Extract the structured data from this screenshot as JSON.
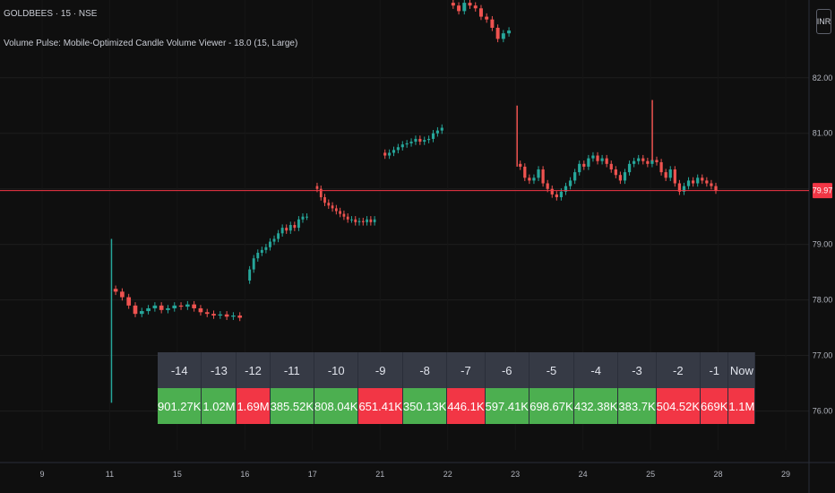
{
  "header": {
    "symbol": "GOLDBEES · 15 · NSE",
    "indicator": "Volume Pulse: Mobile-Optimized Candle Volume Viewer - 18.0 (15, Large)"
  },
  "currency_button": {
    "label": "INR"
  },
  "last_price": {
    "label": "79.97",
    "value": 79.97,
    "color": "#f23645"
  },
  "colors": {
    "up": "#26a69a",
    "down": "#ef5350",
    "grid": "#1f1f1f",
    "axis_text": "#b2b5be"
  },
  "chart_data": {
    "type": "candlestick",
    "title": "GOLDBEES · 15 · NSE",
    "y_ticks": [
      76.0,
      77.0,
      78.0,
      79.0,
      80.0,
      81.0,
      82.0
    ],
    "y_tick_labels": [
      "76.00",
      "77.00",
      "78.00",
      "79.00",
      "",
      "81.00",
      "82.00"
    ],
    "ylim": [
      75.3,
      83.4
    ],
    "x_ticks": [
      "9",
      "11",
      "15",
      "16",
      "17",
      "21",
      "22",
      "23",
      "24",
      "25",
      "28",
      "29"
    ],
    "close_series": [
      {
        "day": "11",
        "values": [
          78.15,
          78.05,
          77.9,
          77.75,
          77.8,
          77.85,
          77.9,
          77.82,
          77.85,
          77.9,
          77.88,
          77.92,
          77.85,
          77.78,
          77.75,
          77.72,
          77.74,
          77.7,
          77.72,
          77.68
        ]
      },
      {
        "day": "16",
        "values": [
          78.55,
          78.75,
          78.85,
          78.9,
          78.95,
          79.05,
          79.1,
          79.2,
          79.3,
          79.25,
          79.35,
          79.3,
          79.45,
          79.5,
          79.5
        ]
      },
      {
        "day": "17",
        "values": [
          80.0,
          79.85,
          79.75,
          79.7,
          79.65,
          79.6,
          79.55,
          79.5,
          79.45,
          79.45,
          79.4,
          79.42,
          79.4,
          79.45,
          79.4,
          79.45
        ]
      },
      {
        "day": "21",
        "values": [
          80.6,
          80.65,
          80.7,
          80.75,
          80.8,
          80.82,
          80.85,
          80.9,
          80.85,
          80.88,
          80.9,
          81.0,
          81.05,
          81.1
        ]
      },
      {
        "day": "22",
        "values": [
          83.3,
          83.2,
          83.35,
          83.3,
          83.25,
          83.1,
          83.05,
          82.9,
          82.7,
          82.8,
          82.85
        ]
      },
      {
        "day": "23",
        "values": [
          80.4,
          80.2,
          80.15,
          80.2,
          80.35,
          80.1,
          80.0,
          79.9,
          79.85,
          79.95,
          80.05,
          80.15,
          80.3,
          80.45,
          80.4,
          80.55,
          80.6,
          80.5,
          80.55,
          80.45,
          80.35,
          80.25,
          80.15,
          80.3,
          80.45,
          80.5,
          80.55,
          80.5,
          80.45,
          80.52,
          80.48,
          80.3,
          80.2,
          80.35,
          80.1,
          79.95,
          80.05,
          80.15,
          80.1,
          80.2,
          80.15,
          80.1,
          80.05,
          79.97
        ]
      }
    ],
    "volume_table": {
      "labels": [
        "-14",
        "-13",
        "-12",
        "-11",
        "-10",
        "-9",
        "-8",
        "-7",
        "-6",
        "-5",
        "-4",
        "-3",
        "-2",
        "-1",
        "Now"
      ],
      "values": [
        "901.27K",
        "1.02M",
        "1.69M",
        "385.52K",
        "808.04K",
        "651.41K",
        "350.13K",
        "446.1K",
        "597.41K",
        "698.67K",
        "432.38K",
        "383.7K",
        "504.52K",
        "669K",
        "1.1M"
      ],
      "directions": [
        "up",
        "up",
        "down",
        "up",
        "up",
        "down",
        "up",
        "down",
        "up",
        "up",
        "up",
        "up",
        "down",
        "down",
        "down"
      ]
    }
  }
}
